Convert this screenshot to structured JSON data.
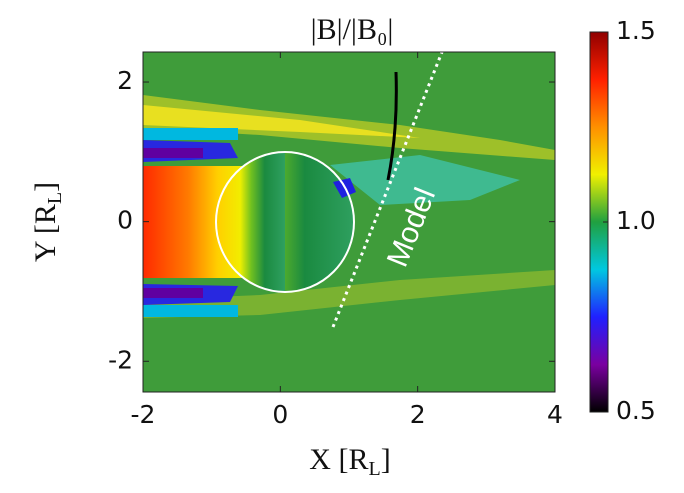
{
  "chart_data": {
    "type": "heatmap",
    "title": "|B|/|B₀|",
    "xlabel": [
      "X [R",
      "L",
      "]"
    ],
    "ylabel": [
      "Y [R",
      "L",
      "]"
    ],
    "annotation": "Model",
    "xlim": [
      -2,
      4
    ],
    "xticks": [
      -2,
      0,
      2,
      4
    ],
    "ylim": [
      -2.44,
      2.43
    ],
    "yticks": [
      -2,
      0,
      2
    ],
    "clim": [
      0.5,
      1.5
    ],
    "cticks": [
      0.5,
      {
        "value": 1,
        "label": "1.0"
      },
      1.5
    ],
    "colormap": [
      "#000000",
      "#7a00a0",
      "#2020ff",
      "#00c8e0",
      "#20a040",
      "#f0f000",
      "#ff9000",
      "#ff2000",
      "#900000"
    ]
  }
}
